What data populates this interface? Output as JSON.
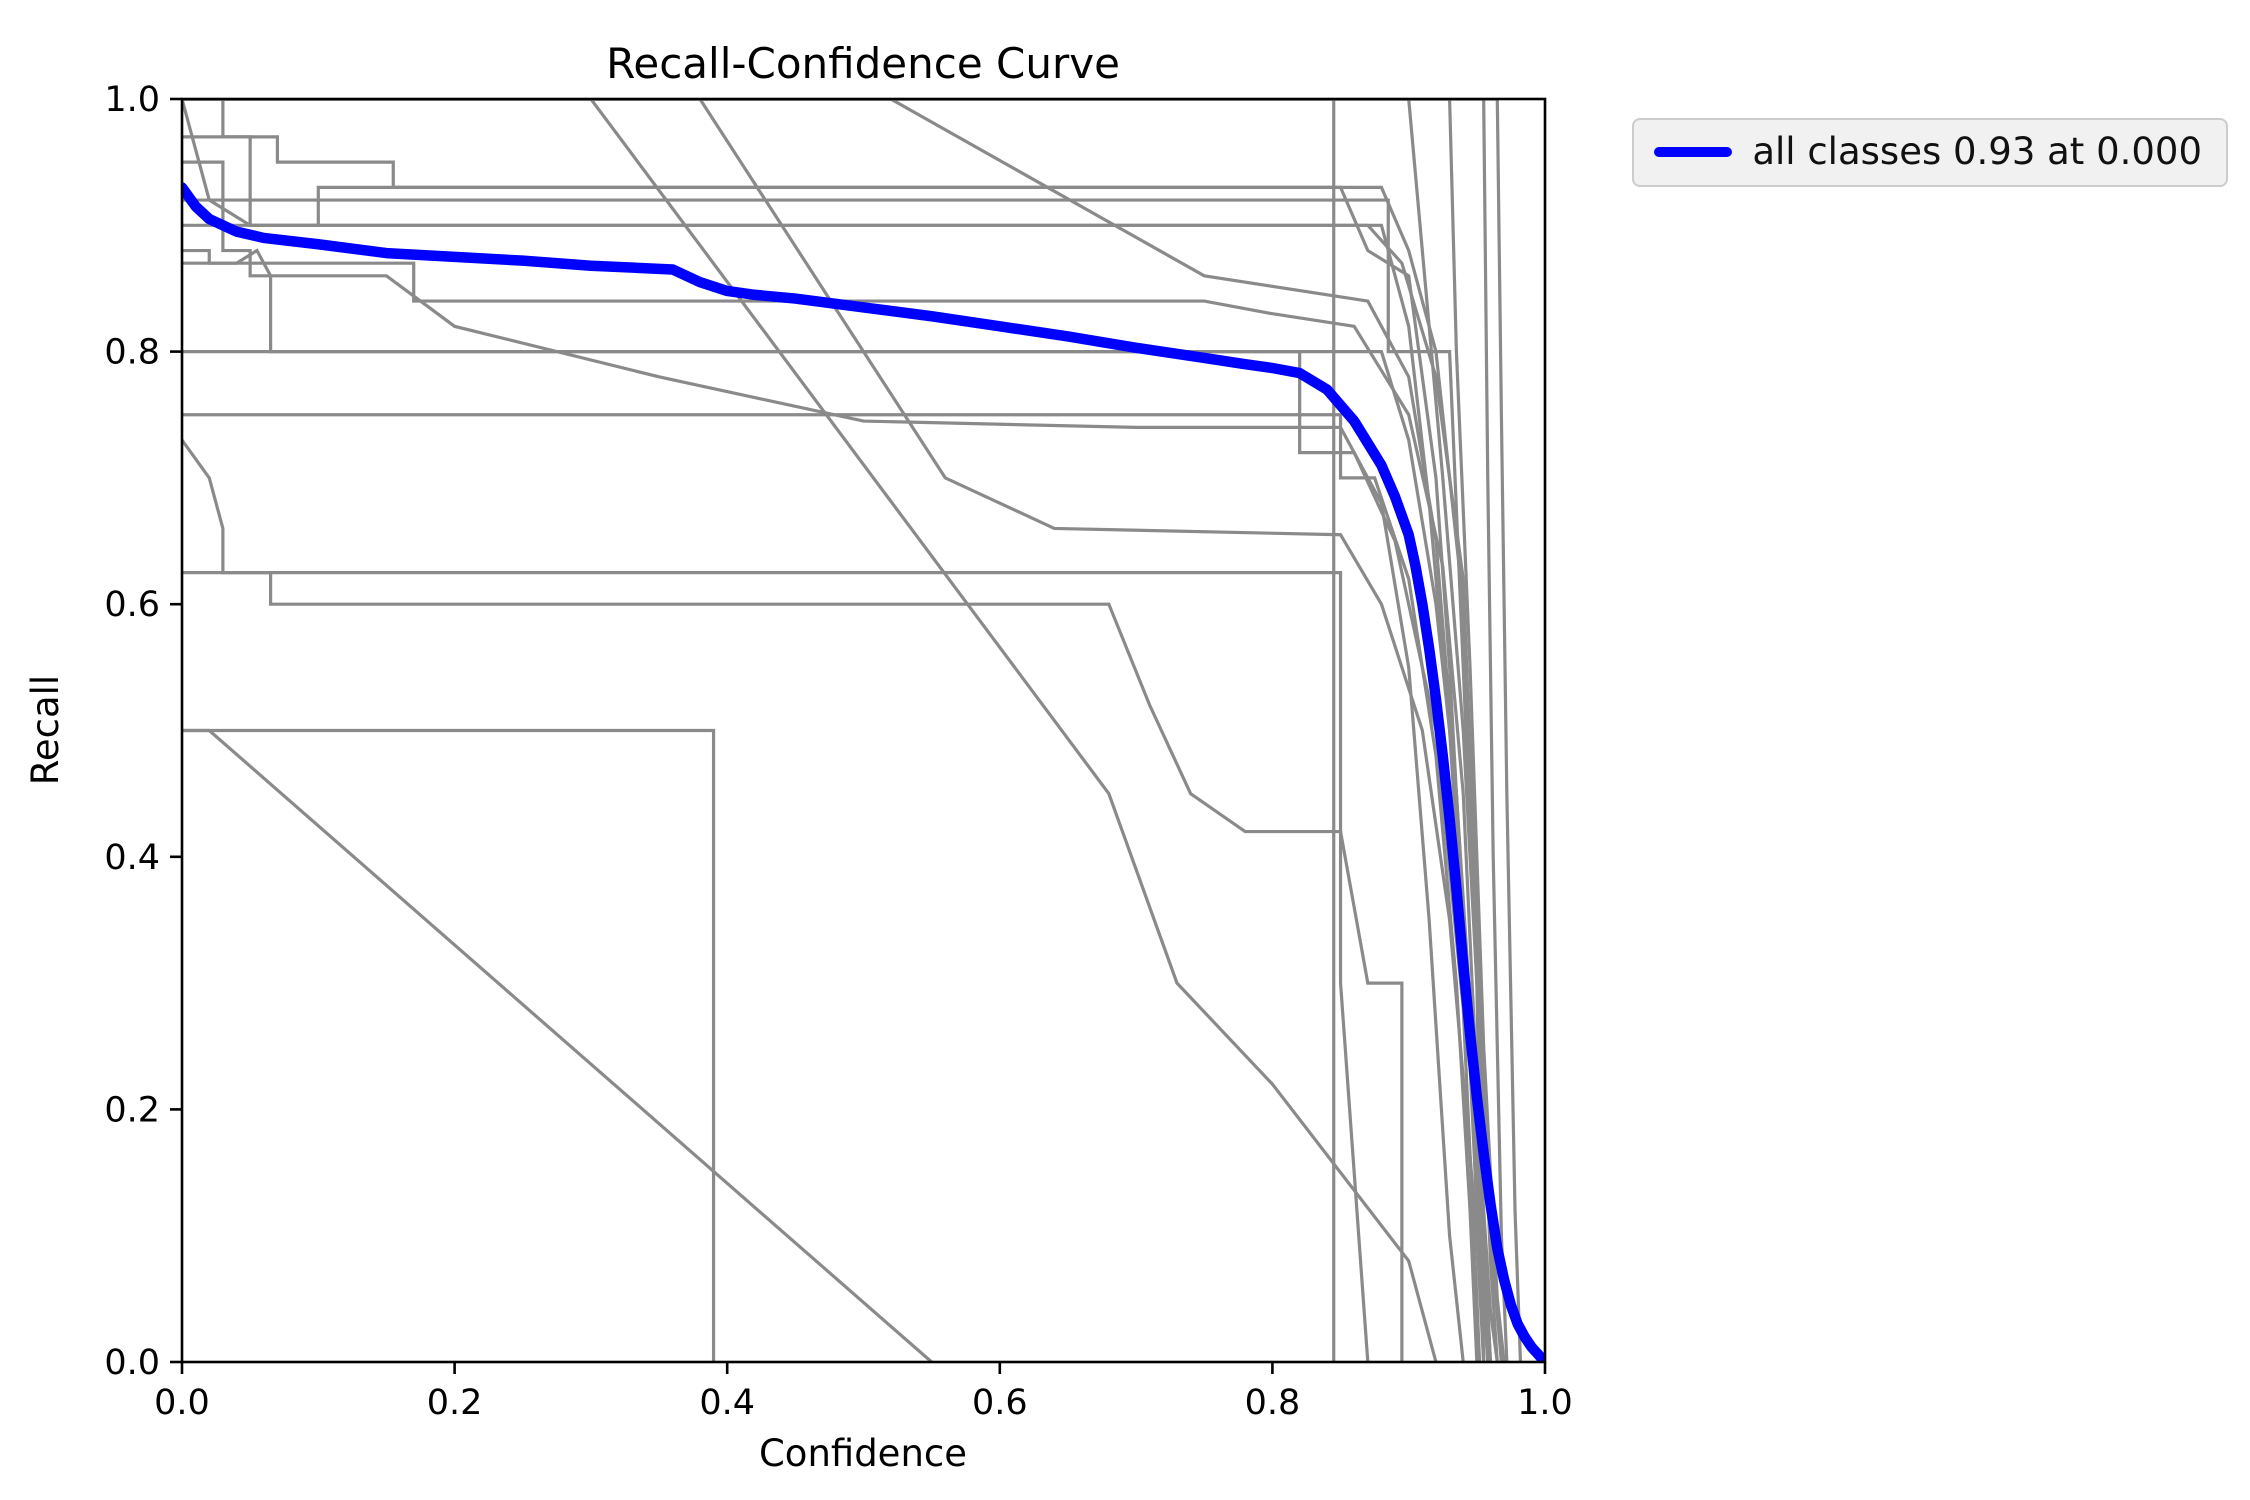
{
  "chart_data": {
    "type": "line",
    "title": "Recall-Confidence Curve",
    "xlabel": "Confidence",
    "ylabel": "Recall",
    "xlim": [
      0.0,
      1.0
    ],
    "ylim": [
      0.0,
      1.0
    ],
    "grid": false,
    "xticks": {
      "values": [
        0.0,
        0.2,
        0.4,
        0.6,
        0.8,
        1.0
      ],
      "labels": [
        "0.0",
        "0.2",
        "0.4",
        "0.6",
        "0.8",
        "1.0"
      ]
    },
    "yticks": {
      "values": [
        0.0,
        0.2,
        0.4,
        0.6,
        0.8,
        1.0
      ],
      "labels": [
        "0.0",
        "0.2",
        "0.4",
        "0.6",
        "0.8",
        "1.0"
      ]
    },
    "colors": {
      "main": "#0000ff",
      "classes": "#8a8a8a",
      "axes": "#000000",
      "legend_bg": "#f1f1f1",
      "legend_border": "#cccccc"
    },
    "legend": {
      "label": "all classes 0.93 at 0.000",
      "location": "upper right outside"
    },
    "series": [
      {
        "name": "all classes",
        "max_recall": 0.93,
        "at_confidence": 0.0,
        "color": "#0000ff",
        "points": [
          [
            0.0,
            0.93
          ],
          [
            0.01,
            0.915
          ],
          [
            0.02,
            0.905
          ],
          [
            0.04,
            0.895
          ],
          [
            0.06,
            0.89
          ],
          [
            0.1,
            0.885
          ],
          [
            0.15,
            0.878
          ],
          [
            0.2,
            0.875
          ],
          [
            0.25,
            0.872
          ],
          [
            0.3,
            0.868
          ],
          [
            0.34,
            0.866
          ],
          [
            0.36,
            0.865
          ],
          [
            0.38,
            0.855
          ],
          [
            0.4,
            0.848
          ],
          [
            0.42,
            0.845
          ],
          [
            0.45,
            0.842
          ],
          [
            0.5,
            0.835
          ],
          [
            0.55,
            0.828
          ],
          [
            0.6,
            0.82
          ],
          [
            0.65,
            0.812
          ],
          [
            0.7,
            0.803
          ],
          [
            0.75,
            0.795
          ],
          [
            0.78,
            0.79
          ],
          [
            0.8,
            0.787
          ],
          [
            0.82,
            0.783
          ],
          [
            0.84,
            0.77
          ],
          [
            0.86,
            0.745
          ],
          [
            0.88,
            0.71
          ],
          [
            0.89,
            0.685
          ],
          [
            0.9,
            0.655
          ],
          [
            0.905,
            0.63
          ],
          [
            0.91,
            0.6
          ],
          [
            0.915,
            0.565
          ],
          [
            0.92,
            0.525
          ],
          [
            0.925,
            0.48
          ],
          [
            0.93,
            0.43
          ],
          [
            0.935,
            0.375
          ],
          [
            0.94,
            0.315
          ],
          [
            0.945,
            0.26
          ],
          [
            0.95,
            0.21
          ],
          [
            0.955,
            0.165
          ],
          [
            0.96,
            0.125
          ],
          [
            0.965,
            0.09
          ],
          [
            0.97,
            0.065
          ],
          [
            0.975,
            0.045
          ],
          [
            0.98,
            0.03
          ],
          [
            0.985,
            0.02
          ],
          [
            0.99,
            0.012
          ],
          [
            1.0,
            0.0
          ]
        ]
      }
    ],
    "class_series": [
      {
        "points": [
          [
            0.0,
            1.0
          ],
          [
            0.845,
            1.0
          ],
          [
            0.845,
            0.0
          ]
        ]
      },
      {
        "points": [
          [
            0.0,
            1.0
          ],
          [
            0.03,
            1.0
          ],
          [
            0.03,
            0.97
          ],
          [
            0.07,
            0.97
          ],
          [
            0.07,
            0.95
          ],
          [
            0.155,
            0.95
          ],
          [
            0.155,
            0.93
          ],
          [
            0.88,
            0.93
          ],
          [
            0.9,
            0.88
          ],
          [
            0.92,
            0.8
          ],
          [
            0.94,
            0.6
          ],
          [
            0.95,
            0.35
          ],
          [
            0.955,
            0.1
          ],
          [
            0.96,
            0.0
          ]
        ]
      },
      {
        "points": [
          [
            0.0,
            1.0
          ],
          [
            0.3,
            1.0
          ],
          [
            0.68,
            0.45
          ],
          [
            0.73,
            0.3
          ],
          [
            0.8,
            0.22
          ],
          [
            0.9,
            0.08
          ],
          [
            0.92,
            0.0
          ]
        ]
      },
      {
        "points": [
          [
            0.0,
            1.0
          ],
          [
            0.38,
            1.0
          ],
          [
            0.56,
            0.7
          ],
          [
            0.64,
            0.66
          ],
          [
            0.85,
            0.655
          ],
          [
            0.88,
            0.6
          ],
          [
            0.91,
            0.5
          ],
          [
            0.93,
            0.35
          ],
          [
            0.95,
            0.1
          ],
          [
            0.955,
            0.0
          ]
        ]
      },
      {
        "points": [
          [
            0.0,
            0.92
          ],
          [
            0.885,
            0.92
          ],
          [
            0.885,
            0.8
          ],
          [
            0.93,
            0.8
          ],
          [
            0.94,
            0.55
          ],
          [
            0.95,
            0.3
          ],
          [
            0.955,
            0.0
          ]
        ]
      },
      {
        "points": [
          [
            0.0,
            0.9
          ],
          [
            0.87,
            0.9
          ],
          [
            0.895,
            0.87
          ],
          [
            0.92,
            0.78
          ],
          [
            0.94,
            0.62
          ],
          [
            0.95,
            0.35
          ],
          [
            0.96,
            0.08
          ],
          [
            0.965,
            0.0
          ]
        ]
      },
      {
        "points": [
          [
            0.0,
            0.88
          ],
          [
            0.02,
            0.88
          ],
          [
            0.02,
            0.87
          ],
          [
            0.17,
            0.87
          ],
          [
            0.17,
            0.84
          ],
          [
            0.75,
            0.84
          ],
          [
            0.8,
            0.83
          ],
          [
            0.86,
            0.82
          ],
          [
            0.9,
            0.75
          ],
          [
            0.925,
            0.63
          ],
          [
            0.94,
            0.45
          ],
          [
            0.95,
            0.22
          ],
          [
            0.96,
            0.0
          ]
        ]
      },
      {
        "points": [
          [
            0.0,
            0.87
          ],
          [
            0.04,
            0.87
          ],
          [
            0.055,
            0.88
          ],
          [
            0.065,
            0.86
          ],
          [
            0.065,
            0.8
          ],
          [
            0.82,
            0.8
          ],
          [
            0.82,
            0.72
          ],
          [
            0.86,
            0.72
          ],
          [
            0.89,
            0.65
          ],
          [
            0.92,
            0.5
          ],
          [
            0.94,
            0.28
          ],
          [
            0.95,
            0.05
          ],
          [
            0.952,
            0.0
          ]
        ]
      },
      {
        "points": [
          [
            0.0,
            0.8
          ],
          [
            0.88,
            0.8
          ],
          [
            0.9,
            0.73
          ],
          [
            0.92,
            0.6
          ],
          [
            0.935,
            0.45
          ],
          [
            0.95,
            0.18
          ],
          [
            0.958,
            0.0
          ]
        ]
      },
      {
        "points": [
          [
            0.0,
            0.75
          ],
          [
            0.015,
            0.75
          ],
          [
            0.85,
            0.75
          ],
          [
            0.85,
            0.7
          ],
          [
            0.875,
            0.7
          ],
          [
            0.9,
            0.62
          ],
          [
            0.92,
            0.48
          ],
          [
            0.935,
            0.3
          ],
          [
            0.945,
            0.12
          ],
          [
            0.95,
            0.0
          ]
        ]
      },
      {
        "points": [
          [
            0.0,
            0.73
          ],
          [
            0.02,
            0.7
          ],
          [
            0.03,
            0.66
          ],
          [
            0.03,
            0.625
          ],
          [
            0.065,
            0.625
          ],
          [
            0.065,
            0.6
          ],
          [
            0.68,
            0.6
          ],
          [
            0.71,
            0.52
          ],
          [
            0.74,
            0.45
          ],
          [
            0.78,
            0.42
          ],
          [
            0.85,
            0.42
          ],
          [
            0.87,
            0.3
          ],
          [
            0.895,
            0.3
          ],
          [
            0.895,
            0.0
          ]
        ]
      },
      {
        "points": [
          [
            0.0,
            0.625
          ],
          [
            0.85,
            0.625
          ],
          [
            0.85,
            0.3
          ],
          [
            0.86,
            0.15
          ],
          [
            0.87,
            0.0
          ]
        ]
      },
      {
        "points": [
          [
            0.0,
            0.5
          ],
          [
            0.39,
            0.5
          ],
          [
            0.39,
            0.0
          ]
        ]
      },
      {
        "points": [
          [
            0.0,
            0.5
          ],
          [
            0.02,
            0.5
          ],
          [
            0.55,
            0.0
          ]
        ]
      },
      {
        "points": [
          [
            0.0,
            1.0
          ],
          [
            0.93,
            1.0
          ],
          [
            0.935,
            0.8
          ],
          [
            0.945,
            0.55
          ],
          [
            0.955,
            0.25
          ],
          [
            0.965,
            0.05
          ],
          [
            0.97,
            0.0
          ]
        ]
      },
      {
        "points": [
          [
            0.0,
            1.0
          ],
          [
            0.955,
            1.0
          ],
          [
            0.958,
            0.7
          ],
          [
            0.962,
            0.4
          ],
          [
            0.968,
            0.1
          ],
          [
            0.972,
            0.0
          ]
        ]
      },
      {
        "points": [
          [
            0.0,
            1.0
          ],
          [
            0.965,
            1.0
          ],
          [
            0.968,
            0.75
          ],
          [
            0.972,
            0.45
          ],
          [
            0.978,
            0.12
          ],
          [
            0.982,
            0.0
          ]
        ]
      },
      {
        "points": [
          [
            0.0,
            1.0
          ],
          [
            0.9,
            1.0
          ],
          [
            0.91,
            0.88
          ],
          [
            0.925,
            0.7
          ],
          [
            0.94,
            0.5
          ],
          [
            0.95,
            0.3
          ],
          [
            0.96,
            0.1
          ],
          [
            0.968,
            0.0
          ]
        ]
      },
      {
        "points": [
          [
            0.0,
            0.95
          ],
          [
            0.03,
            0.95
          ],
          [
            0.03,
            0.88
          ],
          [
            0.05,
            0.88
          ],
          [
            0.05,
            0.86
          ],
          [
            0.15,
            0.86
          ],
          [
            0.2,
            0.82
          ],
          [
            0.35,
            0.78
          ],
          [
            0.5,
            0.745
          ],
          [
            0.7,
            0.74
          ],
          [
            0.85,
            0.74
          ],
          [
            0.88,
            0.68
          ],
          [
            0.9,
            0.55
          ],
          [
            0.915,
            0.35
          ],
          [
            0.93,
            0.1
          ],
          [
            0.94,
            0.0
          ]
        ]
      },
      {
        "points": [
          [
            0.0,
            1.0
          ],
          [
            0.02,
            0.92
          ],
          [
            0.05,
            0.9
          ],
          [
            0.16,
            0.9
          ],
          [
            0.88,
            0.9
          ],
          [
            0.9,
            0.82
          ],
          [
            0.915,
            0.68
          ],
          [
            0.93,
            0.5
          ],
          [
            0.945,
            0.25
          ],
          [
            0.955,
            0.05
          ],
          [
            0.958,
            0.0
          ]
        ]
      },
      {
        "points": [
          [
            0.0,
            1.0
          ],
          [
            0.52,
            1.0
          ],
          [
            0.75,
            0.86
          ],
          [
            0.87,
            0.84
          ],
          [
            0.9,
            0.78
          ],
          [
            0.92,
            0.65
          ],
          [
            0.935,
            0.45
          ],
          [
            0.95,
            0.2
          ],
          [
            0.96,
            0.04
          ],
          [
            0.965,
            0.0
          ]
        ]
      },
      {
        "points": [
          [
            0.0,
            0.97
          ],
          [
            0.05,
            0.97
          ],
          [
            0.05,
            0.9
          ],
          [
            0.1,
            0.9
          ],
          [
            0.1,
            0.93
          ],
          [
            0.85,
            0.93
          ],
          [
            0.87,
            0.88
          ],
          [
            0.9,
            0.86
          ],
          [
            0.92,
            0.7
          ],
          [
            0.93,
            0.55
          ],
          [
            0.94,
            0.35
          ],
          [
            0.95,
            0.12
          ],
          [
            0.955,
            0.0
          ]
        ]
      }
    ]
  }
}
